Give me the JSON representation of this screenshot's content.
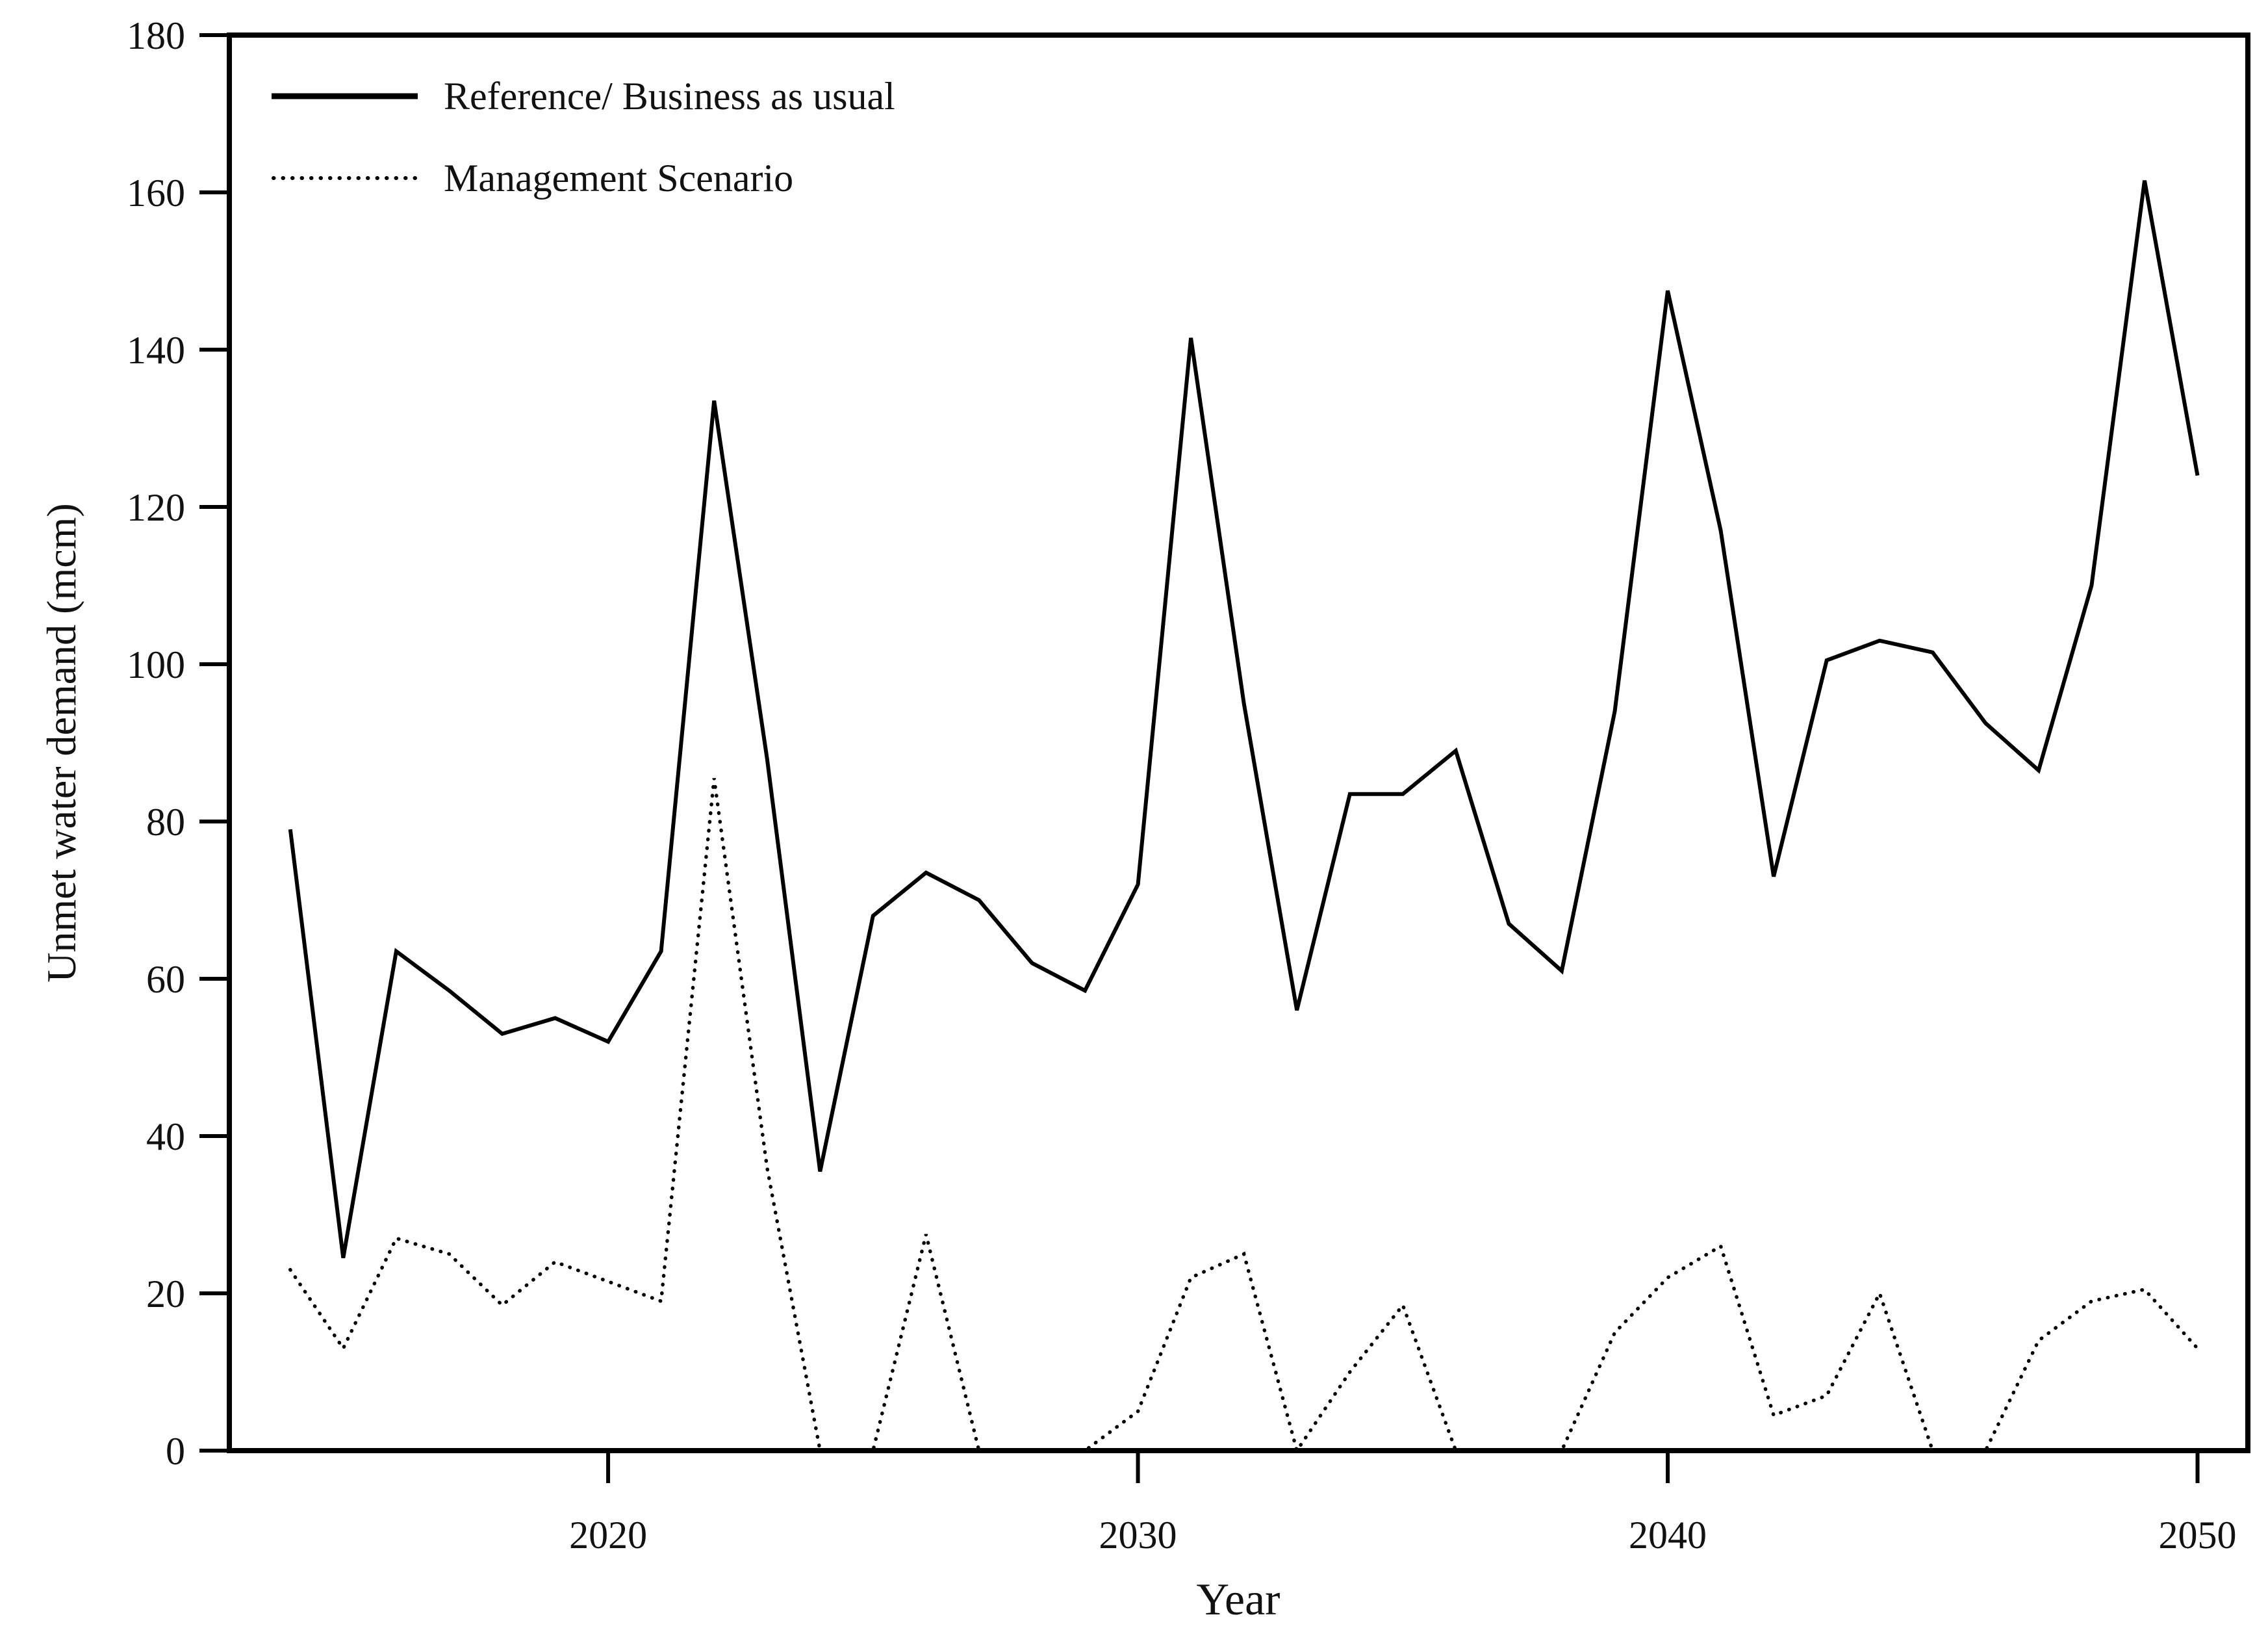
{
  "chart_data": {
    "type": "line",
    "title": "",
    "xlabel": "Year",
    "ylabel": "Unmet water demand (mcm)",
    "x": [
      2014,
      2015,
      2016,
      2017,
      2018,
      2019,
      2020,
      2021,
      2022,
      2023,
      2024,
      2025,
      2026,
      2027,
      2028,
      2029,
      2030,
      2031,
      2032,
      2033,
      2034,
      2035,
      2036,
      2037,
      2038,
      2039,
      2040,
      2041,
      2042,
      2043,
      2044,
      2045,
      2046,
      2047,
      2048,
      2049,
      2050
    ],
    "series": [
      {
        "name": "Reference/ Business as usual",
        "style": "solid",
        "values": [
          79,
          24.5,
          63.5,
          58.5,
          53,
          55,
          52,
          63.5,
          133.5,
          88,
          35.5,
          68,
          73.5,
          70,
          62,
          58.5,
          72,
          141.5,
          95,
          56,
          83.5,
          83.5,
          89,
          67,
          61,
          94,
          147.5,
          117,
          73,
          100.5,
          103,
          101.5,
          92.5,
          86.5,
          110,
          161.5,
          124
        ]
      },
      {
        "name": "Management Scenario",
        "style": "dotted",
        "values": [
          23,
          13,
          27,
          25,
          18.5,
          24,
          21.5,
          19,
          85.5,
          36,
          0,
          0,
          27.5,
          0,
          0,
          0,
          5,
          22,
          25,
          0,
          10,
          18.5,
          0,
          0,
          0,
          15,
          22,
          26,
          4.5,
          7,
          20,
          0,
          0,
          14,
          19,
          20.5,
          13
        ],
        "note_2045_2046": 0
      }
    ],
    "xlim": [
      2012.85,
      2050.95
    ],
    "ylim": [
      0,
      180
    ],
    "x_ticks": [
      2020,
      2030,
      2040,
      2050
    ],
    "y_ticks": [
      0,
      20,
      40,
      60,
      80,
      100,
      120,
      140,
      160,
      180
    ],
    "grid": false,
    "legend_position": "top-left-inside",
    "line_color": "#000000",
    "text_color": "#111111",
    "background_color": "#ffffff",
    "frame": "full-box",
    "tick_label_font_size": 60
  }
}
